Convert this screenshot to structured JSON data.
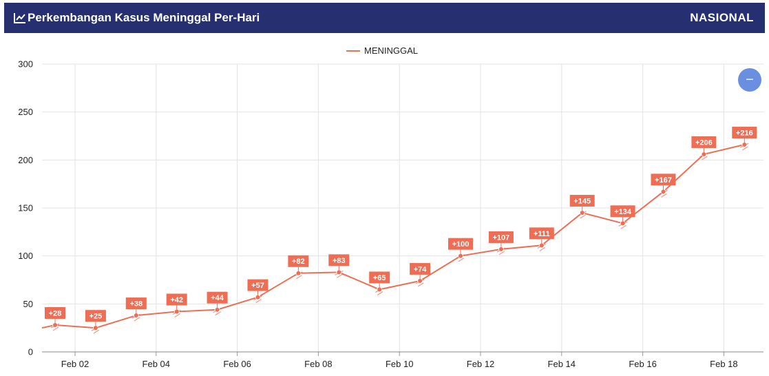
{
  "header": {
    "icon": "line-chart-icon",
    "title": "Perkembangan Kasus Meninggal Per-Hari",
    "scope": "NASIONAL"
  },
  "zoom_button": {
    "icon": "minus-icon",
    "label": "−"
  },
  "colors": {
    "header_bg": "#262f6f",
    "series": "#ee6e55",
    "zoom": "#6a8fe0"
  },
  "chart_data": {
    "type": "line",
    "legend": {
      "position": "top-center",
      "entries": [
        "MENINGGAL"
      ]
    },
    "grid": true,
    "x_ticks": [
      "Feb 02",
      "Feb 04",
      "Feb 06",
      "Feb 08",
      "Feb 10",
      "Feb 12",
      "Feb 14",
      "Feb 16",
      "Feb 18"
    ],
    "y_ticks": [
      "0",
      "50",
      "100",
      "150",
      "200",
      "250",
      "300"
    ],
    "ylim": [
      0,
      300
    ],
    "series": [
      {
        "name": "MENINGGAL",
        "color": "#ee6e55",
        "x": [
          "Feb 01",
          "Feb 02",
          "Feb 03",
          "Feb 04",
          "Feb 05",
          "Feb 06",
          "Feb 07",
          "Feb 08",
          "Feb 09",
          "Feb 10",
          "Feb 11",
          "Feb 12",
          "Feb 13",
          "Feb 14",
          "Feb 15",
          "Feb 16",
          "Feb 17",
          "Feb 18"
        ],
        "values": [
          28,
          25,
          38,
          42,
          44,
          57,
          82,
          83,
          65,
          74,
          100,
          107,
          111,
          145,
          134,
          167,
          206,
          216
        ],
        "data_labels": [
          "+28",
          "+25",
          "+38",
          "+42",
          "+44",
          "+57",
          "+82",
          "+83",
          "+65",
          "+74",
          "+100",
          "+107",
          "+111",
          "+145",
          "+134",
          "+167",
          "+206",
          "+216"
        ]
      }
    ]
  }
}
